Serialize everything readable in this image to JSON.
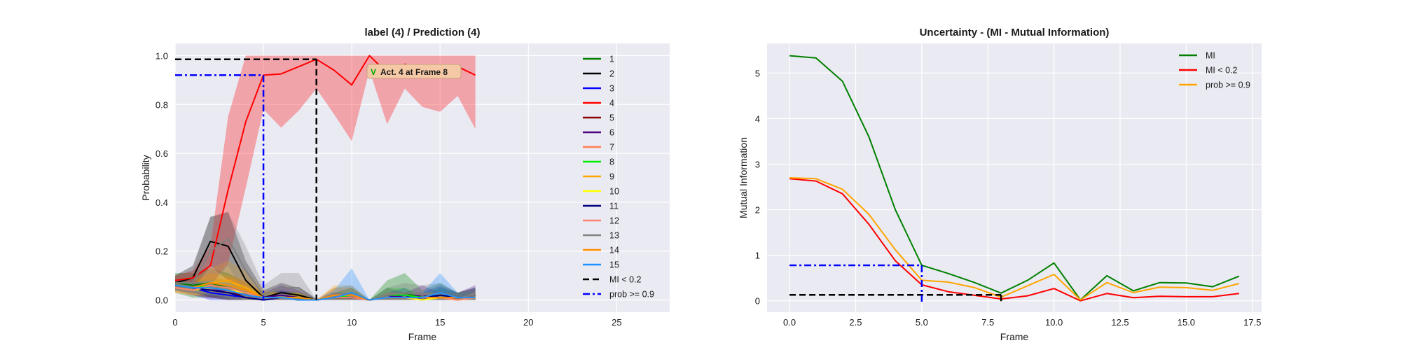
{
  "chart_data": [
    {
      "type": "line",
      "title": "label (4) / Prediction (4)",
      "xlabel": "Frame",
      "ylabel": "Probability",
      "xlim": [
        0,
        28
      ],
      "ylim": [
        -0.05,
        1.05
      ],
      "xticks": [
        0,
        5,
        10,
        15,
        20,
        25
      ],
      "yticks": [
        0.0,
        0.2,
        0.4,
        0.6,
        0.8,
        1.0
      ],
      "grid": true,
      "legend_position": "top-right",
      "x": [
        0,
        1,
        2,
        3,
        4,
        5,
        6,
        7,
        8,
        9,
        10,
        11,
        12,
        13,
        14,
        15,
        16,
        17
      ],
      "series": [
        {
          "name": "1",
          "color": "#008000",
          "values": [
            0.07,
            0.06,
            0.07,
            0.05,
            0.03,
            0.01,
            0.01,
            0.01,
            0.0,
            0.01,
            0.01,
            0.0,
            0.02,
            0.03,
            0.01,
            0.02,
            0.01,
            0.02
          ],
          "band": [
            0.04,
            0.05,
            0.06,
            0.06,
            0.04,
            0.02,
            0.03,
            0.02,
            0.0,
            0.02,
            0.04,
            0.0,
            0.06,
            0.08,
            0.03,
            0.05,
            0.02,
            0.03
          ]
        },
        {
          "name": "2",
          "color": "#000000",
          "values": [
            0.07,
            0.09,
            0.24,
            0.22,
            0.08,
            0.01,
            0.03,
            0.02,
            0.0,
            0.01,
            0.01,
            0.0,
            0.01,
            0.01,
            0.01,
            0.01,
            0.01,
            0.01
          ],
          "band": [
            0.03,
            0.05,
            0.1,
            0.14,
            0.08,
            0.03,
            0.04,
            0.03,
            0.0,
            0.02,
            0.02,
            0.0,
            0.02,
            0.02,
            0.02,
            0.02,
            0.02,
            0.02
          ]
        },
        {
          "name": "3",
          "color": "#0000ff",
          "values": [
            0.06,
            0.05,
            0.03,
            0.02,
            0.01,
            0.0,
            0.01,
            0.0,
            0.0,
            0.01,
            0.02,
            0.0,
            0.01,
            0.02,
            0.0,
            0.02,
            0.01,
            0.01
          ],
          "band": [
            0.02,
            0.03,
            0.03,
            0.02,
            0.02,
            0.0,
            0.03,
            0.02,
            0.0,
            0.02,
            0.03,
            0.0,
            0.02,
            0.03,
            0.01,
            0.03,
            0.02,
            0.02
          ]
        },
        {
          "name": "4",
          "color": "#ff0000",
          "values": [
            0.08,
            0.09,
            0.14,
            0.45,
            0.73,
            0.92,
            0.925,
            0.955,
            0.985,
            0.94,
            0.88,
            1.0,
            0.93,
            0.965,
            0.95,
            0.95,
            0.955,
            0.92
          ],
          "band": [
            0.02,
            0.03,
            0.08,
            0.3,
            0.27,
            0.14,
            0.22,
            0.18,
            0.12,
            0.18,
            0.23,
            0.06,
            0.21,
            0.1,
            0.16,
            0.18,
            0.12,
            0.22
          ]
        },
        {
          "name": "5",
          "color": "#8b0000",
          "values": [
            0.06,
            0.05,
            0.04,
            0.03,
            0.02,
            0.01,
            0.01,
            0.0,
            0.0,
            0.01,
            0.01,
            0.0,
            0.01,
            0.01,
            0.01,
            0.01,
            0.0,
            0.01
          ],
          "band": [
            0.02,
            0.02,
            0.02,
            0.02,
            0.02,
            0.01,
            0.02,
            0.01,
            0.0,
            0.01,
            0.02,
            0.0,
            0.01,
            0.02,
            0.01,
            0.02,
            0.01,
            0.02
          ]
        },
        {
          "name": "6",
          "color": "#4b0082",
          "values": [
            0.06,
            0.05,
            0.04,
            0.04,
            0.02,
            0.01,
            0.02,
            0.01,
            0.0,
            0.01,
            0.01,
            0.0,
            0.02,
            0.01,
            0.02,
            0.01,
            0.01,
            0.02
          ],
          "band": [
            0.02,
            0.03,
            0.03,
            0.03,
            0.03,
            0.02,
            0.04,
            0.03,
            0.0,
            0.02,
            0.02,
            0.0,
            0.03,
            0.02,
            0.04,
            0.02,
            0.02,
            0.04
          ]
        },
        {
          "name": "7",
          "color": "#ff7f50",
          "values": [
            0.05,
            0.04,
            0.06,
            0.05,
            0.03,
            0.01,
            0.01,
            0.01,
            0.0,
            0.01,
            0.02,
            0.0,
            0.01,
            0.01,
            0.01,
            0.01,
            0.0,
            0.01
          ],
          "band": [
            0.02,
            0.02,
            0.03,
            0.04,
            0.04,
            0.02,
            0.02,
            0.02,
            0.0,
            0.02,
            0.03,
            0.0,
            0.02,
            0.02,
            0.01,
            0.02,
            0.01,
            0.02
          ]
        },
        {
          "name": "8",
          "color": "#00ee00",
          "values": [
            0.06,
            0.05,
            0.06,
            0.05,
            0.03,
            0.01,
            0.01,
            0.01,
            0.0,
            0.01,
            0.02,
            0.0,
            0.02,
            0.02,
            0.01,
            0.02,
            0.01,
            0.01
          ],
          "band": [
            0.02,
            0.02,
            0.03,
            0.03,
            0.03,
            0.02,
            0.02,
            0.02,
            0.0,
            0.02,
            0.03,
            0.0,
            0.03,
            0.03,
            0.01,
            0.03,
            0.02,
            0.02
          ]
        },
        {
          "name": "9",
          "color": "#ffa500",
          "values": [
            0.06,
            0.05,
            0.07,
            0.08,
            0.05,
            0.01,
            0.01,
            0.0,
            0.0,
            0.02,
            0.02,
            0.0,
            0.01,
            0.01,
            0.01,
            0.01,
            0.0,
            0.01
          ],
          "band": [
            0.02,
            0.03,
            0.06,
            0.08,
            0.07,
            0.03,
            0.02,
            0.02,
            0.0,
            0.04,
            0.04,
            0.0,
            0.02,
            0.02,
            0.02,
            0.02,
            0.01,
            0.02
          ]
        },
        {
          "name": "10",
          "color": "#ffff00",
          "values": [
            0.05,
            0.04,
            0.05,
            0.04,
            0.03,
            0.01,
            0.01,
            0.0,
            0.0,
            0.01,
            0.01,
            0.0,
            0.01,
            0.01,
            0.0,
            0.01,
            0.0,
            0.01
          ],
          "band": [
            0.02,
            0.02,
            0.03,
            0.03,
            0.03,
            0.01,
            0.02,
            0.01,
            0.0,
            0.01,
            0.02,
            0.0,
            0.02,
            0.02,
            0.01,
            0.02,
            0.01,
            0.02
          ]
        },
        {
          "name": "11",
          "color": "#000080",
          "values": [
            0.06,
            0.05,
            0.04,
            0.03,
            0.01,
            0.0,
            0.01,
            0.0,
            0.0,
            0.01,
            0.01,
            0.0,
            0.01,
            0.01,
            0.01,
            0.02,
            0.01,
            0.02
          ],
          "band": [
            0.02,
            0.02,
            0.03,
            0.03,
            0.02,
            0.01,
            0.02,
            0.01,
            0.0,
            0.02,
            0.02,
            0.0,
            0.02,
            0.02,
            0.02,
            0.04,
            0.02,
            0.03
          ]
        },
        {
          "name": "12",
          "color": "#fa8072",
          "values": [
            0.05,
            0.04,
            0.06,
            0.05,
            0.03,
            0.01,
            0.01,
            0.0,
            0.0,
            0.01,
            0.01,
            0.0,
            0.01,
            0.01,
            0.01,
            0.01,
            0.0,
            0.01
          ],
          "band": [
            0.02,
            0.02,
            0.03,
            0.03,
            0.03,
            0.01,
            0.02,
            0.01,
            0.0,
            0.02,
            0.02,
            0.0,
            0.02,
            0.02,
            0.02,
            0.02,
            0.01,
            0.02
          ]
        },
        {
          "name": "13",
          "color": "#808080",
          "values": [
            0.07,
            0.07,
            0.2,
            0.25,
            0.12,
            0.02,
            0.05,
            0.05,
            0.0,
            0.02,
            0.02,
            0.0,
            0.02,
            0.03,
            0.02,
            0.03,
            0.01,
            0.02
          ],
          "band": [
            0.03,
            0.05,
            0.14,
            0.11,
            0.1,
            0.04,
            0.06,
            0.06,
            0.0,
            0.03,
            0.04,
            0.0,
            0.03,
            0.04,
            0.04,
            0.04,
            0.02,
            0.03
          ]
        },
        {
          "name": "14",
          "color": "#ff8c00",
          "values": [
            0.06,
            0.05,
            0.07,
            0.06,
            0.04,
            0.01,
            0.01,
            0.01,
            0.0,
            0.02,
            0.02,
            0.0,
            0.01,
            0.01,
            0.01,
            0.01,
            0.01,
            0.01
          ],
          "band": [
            0.02,
            0.02,
            0.04,
            0.04,
            0.04,
            0.02,
            0.02,
            0.02,
            0.0,
            0.03,
            0.03,
            0.0,
            0.02,
            0.02,
            0.02,
            0.02,
            0.02,
            0.02
          ]
        },
        {
          "name": "15",
          "color": "#1e90ff",
          "values": [
            0.06,
            0.05,
            0.05,
            0.04,
            0.02,
            0.01,
            0.01,
            0.0,
            0.0,
            0.01,
            0.03,
            0.0,
            0.01,
            0.01,
            0.01,
            0.03,
            0.01,
            0.01
          ],
          "band": [
            0.02,
            0.02,
            0.03,
            0.03,
            0.02,
            0.01,
            0.02,
            0.01,
            0.0,
            0.03,
            0.1,
            0.0,
            0.02,
            0.02,
            0.02,
            0.08,
            0.02,
            0.02
          ]
        }
      ],
      "reference_lines": [
        {
          "name": "MI < 0.2",
          "color": "#000000",
          "style": "dashed",
          "frame": 8,
          "level": 0.985
        },
        {
          "name": "prob >= 0.9",
          "color": "#0000ff",
          "style": "dashdot",
          "frame": 5,
          "level": 0.92
        }
      ],
      "annotation": {
        "text": "Act. 4 at Frame 8",
        "mark": "V",
        "x": 11.1,
        "y": 0.93
      }
    },
    {
      "type": "line",
      "title": "Uncertainty - (MI - Mutual Information)",
      "xlabel": "Frame",
      "ylabel": "Mutual Information",
      "xlim": [
        -0.85,
        17.85
      ],
      "ylim": [
        -0.25,
        5.65
      ],
      "xticks": [
        0.0,
        2.5,
        5.0,
        7.5,
        10.0,
        12.5,
        15.0,
        17.5
      ],
      "yticks": [
        0,
        1,
        2,
        3,
        4,
        5
      ],
      "grid": true,
      "legend_position": "top-right",
      "x": [
        0,
        1,
        2,
        3,
        4,
        5,
        6,
        7,
        8,
        9,
        10,
        11,
        12,
        13,
        14,
        15,
        16,
        17
      ],
      "series": [
        {
          "name": "MI",
          "color": "#008000",
          "values": [
            5.38,
            5.33,
            4.82,
            3.6,
            2.0,
            0.78,
            0.6,
            0.4,
            0.17,
            0.45,
            0.83,
            0.02,
            0.55,
            0.22,
            0.4,
            0.39,
            0.31,
            0.54
          ]
        },
        {
          "name": "MI < 0.2",
          "color": "#ff0000",
          "values": [
            2.68,
            2.63,
            2.35,
            1.68,
            0.88,
            0.35,
            0.2,
            0.12,
            0.04,
            0.11,
            0.27,
            0.0,
            0.16,
            0.07,
            0.1,
            0.09,
            0.09,
            0.16
          ]
        },
        {
          "name": "prob >= 0.9",
          "color": "#ffa500",
          "values": [
            2.7,
            2.68,
            2.45,
            1.9,
            1.12,
            0.45,
            0.41,
            0.29,
            0.08,
            0.33,
            0.58,
            0.02,
            0.4,
            0.18,
            0.3,
            0.29,
            0.23,
            0.38
          ]
        }
      ],
      "reference_lines": [
        {
          "style": "dashed",
          "color": "#000000",
          "frame": 8,
          "level": 0.13
        },
        {
          "style": "dashdot",
          "color": "#0000ff",
          "frame": 5,
          "level": 0.78
        }
      ]
    }
  ]
}
